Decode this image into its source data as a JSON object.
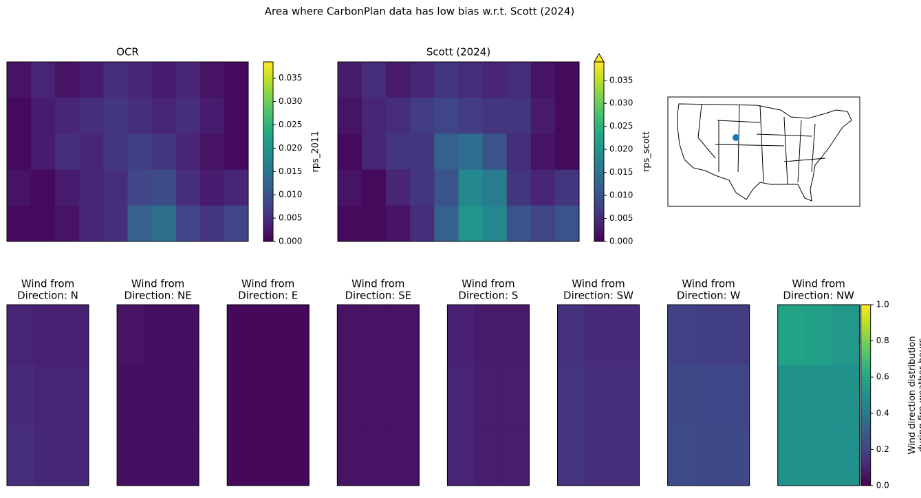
{
  "title": "Area where CarbonPlan data has low bias w.r.t. Scott (2024)",
  "chart_data": [
    {
      "type": "heatmap",
      "title": "OCR",
      "colorbar_label": "rps_2011",
      "clim": [
        0,
        0.0385
      ],
      "cticks": [
        {
          "value": 0,
          "label": "0.000"
        },
        {
          "value": 0.005,
          "label": "0.005"
        },
        {
          "value": 0.01,
          "label": "0.010"
        },
        {
          "value": 0.015,
          "label": "0.015"
        },
        {
          "value": 0.02,
          "label": "0.020"
        },
        {
          "value": 0.025,
          "label": "0.025"
        },
        {
          "value": 0.03,
          "label": "0.030"
        },
        {
          "value": 0.035,
          "label": "0.035"
        }
      ],
      "z": [
        [
          0.002,
          0.004,
          0.002,
          0.003,
          0.005,
          0.004,
          0.003,
          0.004,
          0.002,
          0.001
        ],
        [
          0.001,
          0.003,
          0.004,
          0.005,
          0.006,
          0.005,
          0.004,
          0.005,
          0.003,
          0.001
        ],
        [
          0.001,
          0.003,
          0.005,
          0.004,
          0.006,
          0.007,
          0.006,
          0.004,
          0.002,
          0.001
        ],
        [
          0.002,
          0.001,
          0.003,
          0.004,
          0.005,
          0.008,
          0.009,
          0.005,
          0.003,
          0.004
        ],
        [
          0.001,
          0.001,
          0.002,
          0.004,
          0.005,
          0.012,
          0.014,
          0.008,
          0.006,
          0.008
        ]
      ]
    },
    {
      "type": "heatmap",
      "title": "Scott (2024)",
      "colorbar_label": "rps_scott",
      "clim": [
        0,
        0.039
      ],
      "extend": "max",
      "cticks": [
        {
          "value": 0,
          "label": "0.000"
        },
        {
          "value": 0.005,
          "label": "0.005"
        },
        {
          "value": 0.01,
          "label": "0.010"
        },
        {
          "value": 0.015,
          "label": "0.015"
        },
        {
          "value": 0.02,
          "label": "0.020"
        },
        {
          "value": 0.025,
          "label": "0.025"
        },
        {
          "value": 0.03,
          "label": "0.030"
        },
        {
          "value": 0.035,
          "label": "0.035"
        }
      ],
      "z": [
        [
          0.003,
          0.005,
          0.003,
          0.004,
          0.006,
          0.005,
          0.004,
          0.005,
          0.002,
          0.001
        ],
        [
          0.002,
          0.004,
          0.005,
          0.007,
          0.008,
          0.007,
          0.006,
          0.006,
          0.003,
          0.001
        ],
        [
          0.001,
          0.004,
          0.006,
          0.006,
          0.012,
          0.014,
          0.01,
          0.005,
          0.002,
          0.001
        ],
        [
          0.002,
          0.001,
          0.004,
          0.006,
          0.01,
          0.018,
          0.016,
          0.006,
          0.004,
          0.006
        ],
        [
          0.001,
          0.001,
          0.002,
          0.005,
          0.012,
          0.02,
          0.018,
          0.01,
          0.008,
          0.01
        ]
      ]
    },
    {
      "type": "heatmap",
      "title": "Wind from\nDirection: N",
      "clim": [
        0,
        1
      ],
      "z": [
        [
          0.1,
          0.09,
          0.09
        ],
        [
          0.12,
          0.1,
          0.1
        ],
        [
          0.13,
          0.11,
          0.11
        ]
      ]
    },
    {
      "type": "heatmap",
      "title": "Wind from\nDirection: NE",
      "clim": [
        0,
        1
      ],
      "z": [
        [
          0.05,
          0.04,
          0.04
        ],
        [
          0.04,
          0.04,
          0.04
        ],
        [
          0.04,
          0.04,
          0.04
        ]
      ]
    },
    {
      "type": "heatmap",
      "title": "Wind from\nDirection: E",
      "clim": [
        0,
        1
      ],
      "z": [
        [
          0.02,
          0.02,
          0.02
        ],
        [
          0.02,
          0.02,
          0.02
        ],
        [
          0.02,
          0.02,
          0.02
        ]
      ]
    },
    {
      "type": "heatmap",
      "title": "Wind from\nDirection: SE",
      "clim": [
        0,
        1
      ],
      "z": [
        [
          0.05,
          0.05,
          0.05
        ],
        [
          0.05,
          0.05,
          0.05
        ],
        [
          0.05,
          0.05,
          0.05
        ]
      ]
    },
    {
      "type": "heatmap",
      "title": "Wind from\nDirection: S",
      "clim": [
        0,
        1
      ],
      "z": [
        [
          0.09,
          0.07,
          0.07
        ],
        [
          0.1,
          0.08,
          0.08
        ],
        [
          0.1,
          0.08,
          0.08
        ]
      ]
    },
    {
      "type": "heatmap",
      "title": "Wind from\nDirection: SW",
      "clim": [
        0,
        1
      ],
      "z": [
        [
          0.14,
          0.12,
          0.12
        ],
        [
          0.15,
          0.13,
          0.13
        ],
        [
          0.15,
          0.13,
          0.13
        ]
      ]
    },
    {
      "type": "heatmap",
      "title": "Wind from\nDirection: W",
      "clim": [
        0,
        1
      ],
      "z": [
        [
          0.19,
          0.18,
          0.18
        ],
        [
          0.22,
          0.21,
          0.21
        ],
        [
          0.23,
          0.22,
          0.22
        ]
      ]
    },
    {
      "type": "heatmap",
      "title": "Wind from\nDirection: NW",
      "clim": [
        0,
        1
      ],
      "colorbar_label": "Wind direction distribution\nduring fire-weather hours\n[probability]",
      "cticks": [
        {
          "value": 0,
          "label": "0.0"
        },
        {
          "value": 0.2,
          "label": "0.2"
        },
        {
          "value": 0.4,
          "label": "0.4"
        },
        {
          "value": 0.6,
          "label": "0.6"
        },
        {
          "value": 0.8,
          "label": "0.8"
        },
        {
          "value": 1,
          "label": "1.0"
        }
      ],
      "z": [
        [
          0.58,
          0.56,
          0.53
        ],
        [
          0.5,
          0.5,
          0.5
        ],
        [
          0.5,
          0.5,
          0.5
        ]
      ]
    }
  ]
}
